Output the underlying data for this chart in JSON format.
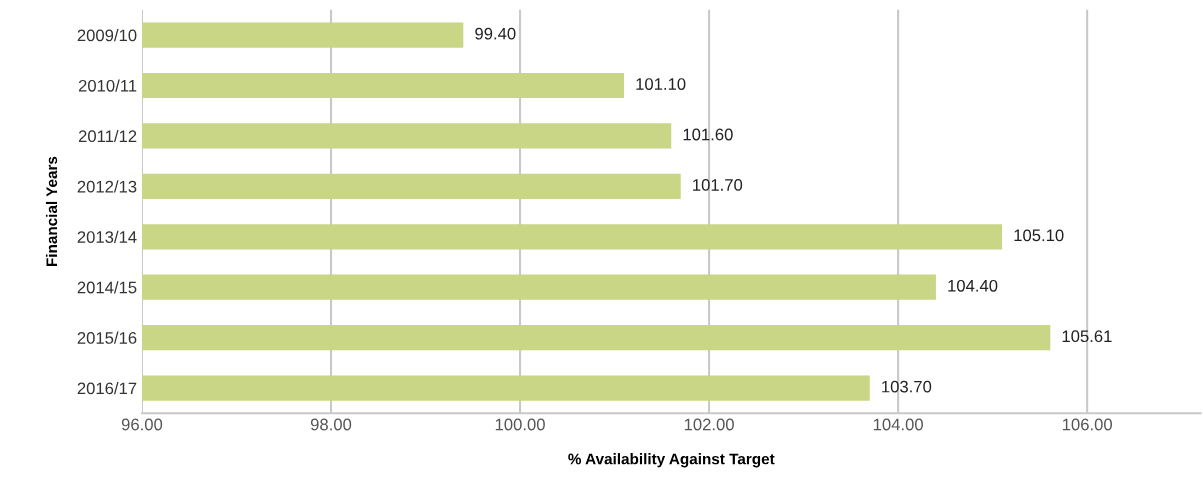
{
  "chart_data": {
    "type": "bar",
    "orientation": "horizontal",
    "xlabel": "% Availability Against Target",
    "ylabel": "Financial Years",
    "categories": [
      "2009/10",
      "2010/11",
      "2011/12",
      "2012/13",
      "2013/14",
      "2014/15",
      "2015/16",
      "2016/17"
    ],
    "values": [
      99.4,
      101.1,
      101.6,
      101.7,
      105.1,
      104.4,
      105.61,
      103.7
    ],
    "color": "#c8d685",
    "value_labels": [
      "99.40",
      "101.10",
      "101.60",
      "101.70",
      "105.10",
      "104.40",
      "105.61",
      "103.70"
    ],
    "xlim": [
      96,
      107.2
    ],
    "xticks": [
      {
        "value": 96,
        "label": "96.00"
      },
      {
        "value": 98,
        "label": "98.00"
      },
      {
        "value": 100,
        "label": "100.00"
      },
      {
        "value": 102,
        "label": "102.00"
      },
      {
        "value": 104,
        "label": "104.00"
      },
      {
        "value": 106,
        "label": "106.00"
      }
    ],
    "grid": "x",
    "legend": false
  }
}
